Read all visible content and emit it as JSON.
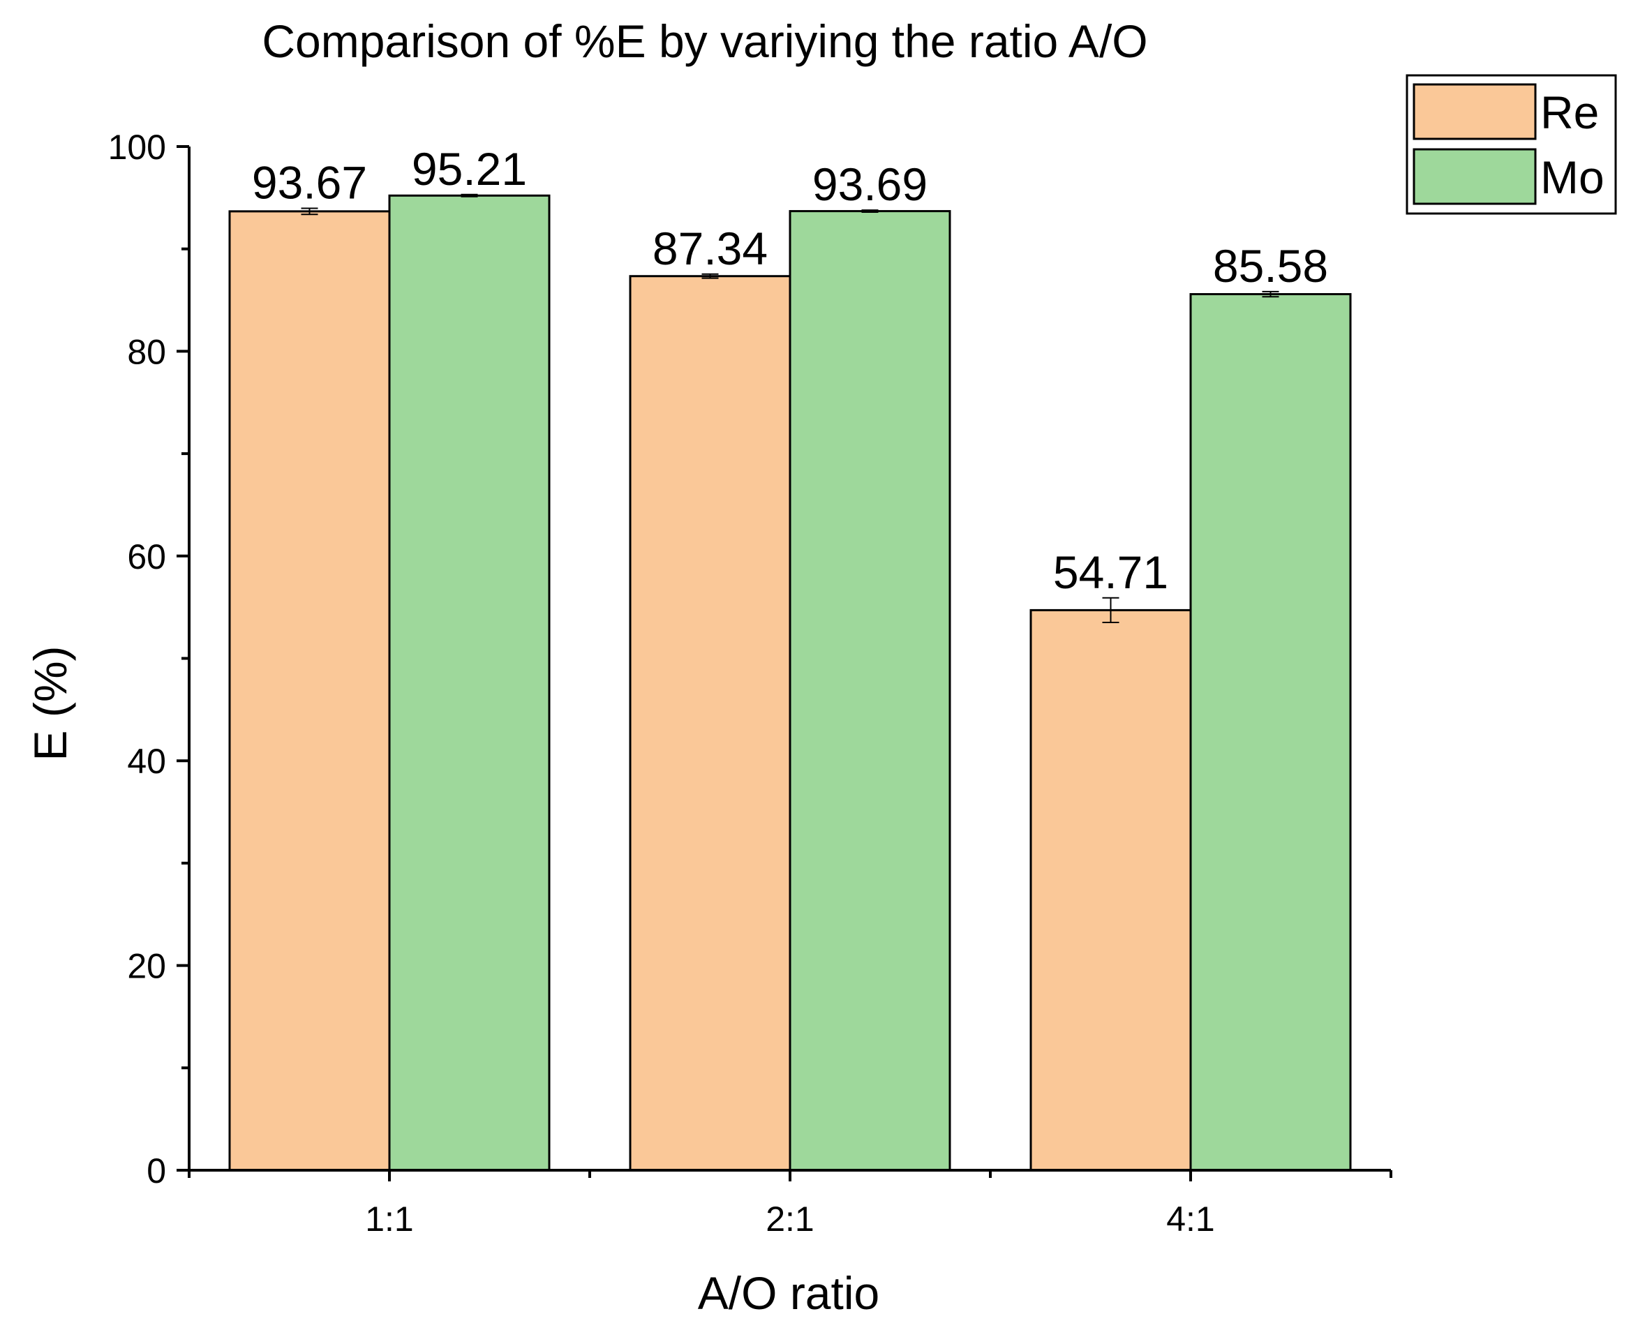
{
  "chart_data": {
    "type": "bar",
    "title": "Comparison of %E by variying the ratio A/O",
    "xlabel": "A/O ratio",
    "ylabel": "E (%)",
    "categories": [
      "1:1",
      "2:1",
      "4:1"
    ],
    "ylim": [
      0,
      100
    ],
    "yticks": [
      0,
      20,
      40,
      60,
      80,
      100
    ],
    "grid": false,
    "legend_position": "top-right",
    "series": [
      {
        "name": "Re",
        "color": "#FAC898",
        "values": [
          93.67,
          87.34,
          54.71
        ],
        "labels": [
          "93.67",
          "87.34",
          "54.71"
        ],
        "errors": [
          0.3,
          0.2,
          1.2
        ]
      },
      {
        "name": "Mo",
        "color": "#9ED89B",
        "values": [
          95.21,
          93.69,
          85.58
        ],
        "labels": [
          "95.21",
          "93.69",
          "85.58"
        ],
        "errors": [
          0.1,
          0.1,
          0.25
        ]
      }
    ]
  }
}
